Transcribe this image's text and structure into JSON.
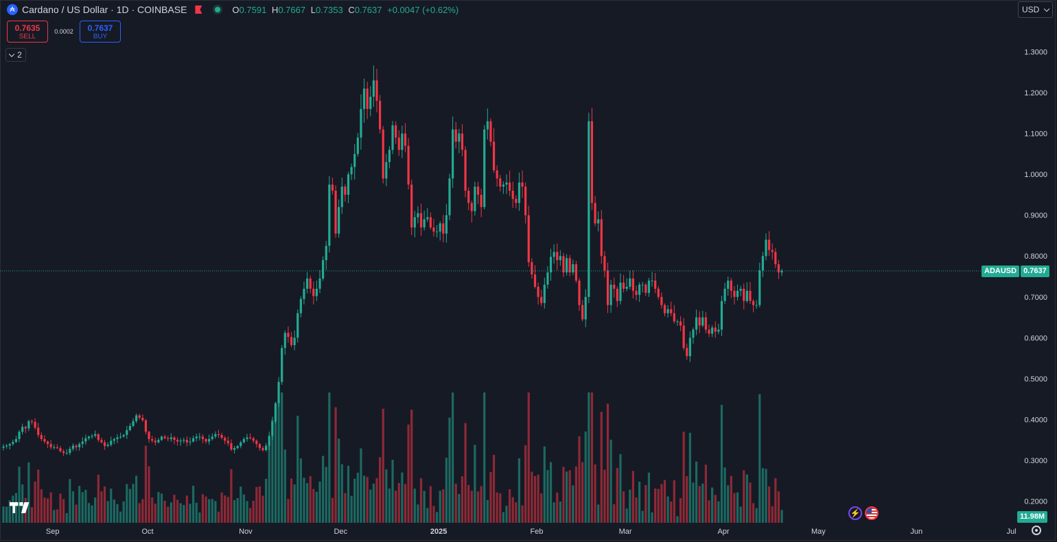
{
  "symbol": {
    "title": "Cardano / US Dollar · 1D · COINBASE",
    "icon": "cardano-icon",
    "ohlc": [
      {
        "key": "O",
        "value": "0.7591"
      },
      {
        "key": "H",
        "value": "0.7667"
      },
      {
        "key": "L",
        "value": "0.7353"
      },
      {
        "key": "C",
        "value": "0.7637"
      }
    ],
    "change": "+0.0047 (+0.62%)"
  },
  "trade": {
    "sell_price": "0.7635",
    "sell_label": "SELL",
    "spread": "0.0002",
    "buy_price": "0.7637",
    "buy_label": "BUY"
  },
  "indicators_count": "2",
  "currency": "USD",
  "last_price": {
    "ticker": "ADAUSD",
    "value": "0.7637"
  },
  "volume_label": "11.98M",
  "colors": {
    "up": "#22ab94",
    "down": "#f23645",
    "background": "#161a25",
    "accent": "#2962ff"
  },
  "chart_data": {
    "type": "candlestick",
    "y_axis": {
      "ticks": [
        "1.3000",
        "1.2000",
        "1.1000",
        "1.0000",
        "0.9000",
        "0.8000",
        "0.7000",
        "0.6000",
        "0.5000",
        "0.4000",
        "0.3000",
        "0.2000"
      ],
      "range": [
        0.17,
        1.35
      ]
    },
    "x_axis": {
      "ticks": [
        "Sep",
        "Oct",
        "Nov",
        "Dec",
        "2025",
        "Feb",
        "Mar",
        "Apr",
        "May",
        "Jun",
        "Jul"
      ]
    },
    "timeframe": "1D",
    "start_date": "2024-08-21",
    "series": [
      {
        "name": "ADAUSD",
        "close": [
          0.334,
          0.336,
          0.34,
          0.345,
          0.352,
          0.37,
          0.382,
          0.378,
          0.396,
          0.394,
          0.38,
          0.362,
          0.352,
          0.346,
          0.34,
          0.332,
          0.332,
          0.33,
          0.322,
          0.318,
          0.318,
          0.328,
          0.336,
          0.332,
          0.34,
          0.346,
          0.354,
          0.358,
          0.36,
          0.364,
          0.35,
          0.344,
          0.335,
          0.338,
          0.348,
          0.352,
          0.356,
          0.358,
          0.362,
          0.374,
          0.384,
          0.396,
          0.41,
          0.404,
          0.398,
          0.37,
          0.352,
          0.348,
          0.344,
          0.35,
          0.358,
          0.354,
          0.352,
          0.356,
          0.35,
          0.346,
          0.348,
          0.35,
          0.344,
          0.346,
          0.354,
          0.358,
          0.358,
          0.352,
          0.346,
          0.352,
          0.358,
          0.364,
          0.362,
          0.355,
          0.348,
          0.342,
          0.326,
          0.33,
          0.335,
          0.344,
          0.352,
          0.356,
          0.354,
          0.348,
          0.34,
          0.33,
          0.325,
          0.336,
          0.36,
          0.395,
          0.44,
          0.492,
          0.575,
          0.612,
          0.602,
          0.582,
          0.6,
          0.66,
          0.695,
          0.72,
          0.745,
          0.72,
          0.702,
          0.72,
          0.745,
          0.79,
          0.825,
          0.975,
          0.96,
          0.855,
          0.92,
          0.97,
          0.95,
          1.0,
          1.018,
          1.05,
          1.09,
          1.16,
          1.21,
          1.16,
          1.19,
          1.23,
          1.18,
          1.11,
          0.99,
          1.03,
          1.06,
          1.12,
          1.09,
          1.06,
          1.1,
          1.07,
          0.975,
          0.87,
          0.895,
          0.905,
          0.87,
          0.89,
          0.895,
          0.87,
          0.86,
          0.86,
          0.88,
          0.855,
          0.9,
          0.99,
          1.11,
          1.08,
          1.1,
          1.06,
          0.96,
          0.93,
          0.91,
          0.97,
          0.95,
          0.92,
          1.11,
          1.13,
          1.08,
          1.01,
          0.99,
          0.97,
          0.975,
          0.98,
          0.96,
          0.94,
          0.93,
          0.98,
          0.97,
          0.9,
          0.785,
          0.755,
          0.725,
          0.7,
          0.685,
          0.73,
          0.76,
          0.798,
          0.81,
          0.79,
          0.8,
          0.76,
          0.795,
          0.76,
          0.78,
          0.74,
          0.68,
          0.645,
          0.7,
          1.13,
          0.93,
          0.88,
          0.89,
          0.8,
          0.765,
          0.68,
          0.73,
          0.72,
          0.69,
          0.735,
          0.72,
          0.725,
          0.745,
          0.715,
          0.705,
          0.73,
          0.73,
          0.71,
          0.74,
          0.74,
          0.72,
          0.7,
          0.68,
          0.66,
          0.67,
          0.66,
          0.64,
          0.64,
          0.63,
          0.575,
          0.555,
          0.6,
          0.62,
          0.65,
          0.63,
          0.65,
          0.62,
          0.61,
          0.625,
          0.615,
          0.62,
          0.69,
          0.72,
          0.74,
          0.715,
          0.7,
          0.715,
          0.72,
          0.69,
          0.715,
          0.69,
          0.68,
          0.68,
          0.765,
          0.8,
          0.84,
          0.815,
          0.81,
          0.78,
          0.76,
          0.7637
        ]
      }
    ],
    "volume_series": {
      "name": "Volume",
      "last": "11.98M"
    }
  }
}
